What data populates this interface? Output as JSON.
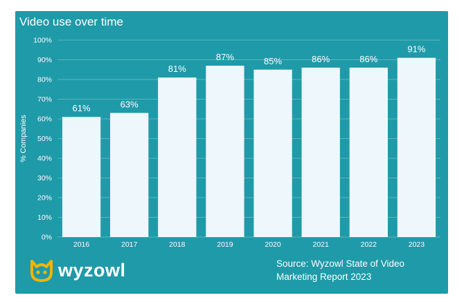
{
  "colors": {
    "background": "#1f9aa8",
    "bar": "#eef7fc",
    "gridline": "#ffffff",
    "text": "#ffffff",
    "logo_accent": "#f5b400"
  },
  "chart_data": {
    "type": "bar",
    "title": "Video use over time",
    "xlabel": "",
    "ylabel": "% Companies",
    "categories": [
      "2016",
      "2017",
      "2018",
      "2019",
      "2020",
      "2021",
      "2022",
      "2023"
    ],
    "values": [
      61,
      63,
      81,
      87,
      85,
      86,
      86,
      91
    ],
    "data_labels": [
      "61%",
      "63%",
      "81%",
      "87%",
      "85%",
      "86%",
      "86%",
      "91%"
    ],
    "ylim": [
      0,
      100
    ],
    "yticks": [
      "0%",
      "10%",
      "20%",
      "30%",
      "40%",
      "50%",
      "60%",
      "70%",
      "80%",
      "90%",
      "100%"
    ],
    "grid": true,
    "legend": "none"
  },
  "branding": {
    "logo_text": "wyzowl",
    "logo_icon": "wyzowl-owl-icon"
  },
  "source": {
    "line1": "Source: Wyzowl State of Video",
    "line2": "Marketing Report 2023"
  }
}
